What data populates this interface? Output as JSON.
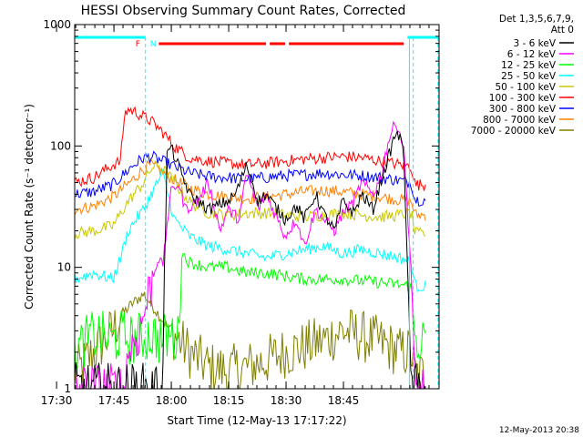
{
  "chart_data": {
    "type": "line",
    "title": "HESSI Observing Summary Count Rates, Corrected",
    "xlabel": "Start Time (12-May-13 17:17:22)",
    "ylabel": "Corrected Count Rate (s⁻¹ detector⁻¹)",
    "y_scale": "log",
    "ylim": [
      1,
      1000
    ],
    "xlim_minutes": [
      17.37,
      112.63
    ],
    "x_tick_labels": [
      "17:30",
      "17:45",
      "18:00",
      "18:15",
      "18:30",
      "18:45"
    ],
    "x_ticks_minutes": [
      12.63,
      27.63,
      42.63,
      57.63,
      72.63,
      87.63
    ],
    "y_tick_labels": [
      "1",
      "10",
      "100",
      "1000"
    ],
    "y_ticks": [
      1,
      10,
      100,
      1000
    ],
    "grid": false,
    "legend_placement": "outside-right",
    "legend_header": [
      "Det 1,3,5,6,7,9,",
      "Att 0"
    ],
    "series": [
      {
        "name": "3 - 6 keV",
        "color": "#000000",
        "t": [
          0,
          23,
          24,
          25,
          27,
          30,
          35,
          40,
          42,
          45,
          48,
          50,
          53,
          55,
          58,
          60,
          63,
          65,
          68,
          70,
          73,
          75,
          78,
          80,
          82,
          84,
          86,
          88,
          92
        ],
        "y": [
          1,
          1,
          80,
          100,
          70,
          40,
          30,
          35,
          40,
          70,
          35,
          40,
          30,
          25,
          32,
          25,
          40,
          28,
          20,
          35,
          28,
          40,
          30,
          50,
          80,
          130,
          100,
          1,
          1
        ]
      },
      {
        "name": "6 - 12 keV",
        "color": "#ff00ff",
        "t": [
          0,
          13,
          14,
          17,
          21,
          22,
          23,
          25,
          27,
          29,
          32,
          35,
          38,
          40,
          43,
          45,
          48,
          50,
          53,
          55,
          58,
          60,
          63,
          65,
          68,
          70,
          73,
          75,
          78,
          80,
          82,
          84,
          86,
          88,
          89,
          92
        ],
        "y": [
          1,
          1,
          2,
          3,
          10,
          12,
          10,
          40,
          50,
          30,
          35,
          50,
          20,
          30,
          25,
          60,
          30,
          40,
          25,
          18,
          25,
          15,
          30,
          25,
          20,
          28,
          35,
          50,
          40,
          55,
          110,
          160,
          100,
          9,
          1,
          1
        ]
      },
      {
        "name": "12 - 25 keV",
        "color": "#00ff00",
        "t": [
          0,
          5,
          10,
          12,
          15,
          20,
          23,
          25,
          27,
          28,
          30,
          35,
          40,
          45,
          50,
          60,
          70,
          80,
          88,
          89,
          92
        ],
        "y": [
          2,
          2.8,
          2.5,
          2.8,
          2.5,
          2.8,
          2.5,
          2.8,
          2.5,
          13,
          11,
          10,
          10,
          9,
          9,
          8,
          8,
          7.5,
          7,
          2.5,
          2.5
        ]
      },
      {
        "name": "25 - 50 keV",
        "color": "#00ffff",
        "t": [
          0,
          5,
          10,
          12,
          14,
          16,
          18,
          20,
          23,
          26,
          30,
          35,
          40,
          45,
          50,
          55,
          60,
          65,
          70,
          75,
          80,
          85,
          88,
          89,
          92
        ],
        "y": [
          8,
          9,
          8,
          12,
          20,
          25,
          30,
          40,
          60,
          25,
          18,
          15,
          14,
          13,
          12,
          13,
          14,
          15,
          13,
          14,
          13,
          12,
          11,
          7,
          7
        ]
      },
      {
        "name": "50 - 100 keV",
        "color": "#c8c800",
        "t": [
          0,
          5,
          10,
          14,
          18,
          20,
          22,
          25,
          30,
          35,
          40,
          45,
          50,
          55,
          60,
          65,
          70,
          75,
          80,
          85,
          88,
          89,
          92
        ],
        "y": [
          19,
          20,
          22,
          35,
          50,
          65,
          70,
          55,
          35,
          28,
          27,
          28,
          28,
          27,
          26,
          27,
          28,
          27,
          26,
          27,
          28,
          19,
          19
        ]
      },
      {
        "name": "100 - 300 keV",
        "color": "#ff0000",
        "t": [
          0,
          5,
          10,
          12,
          13,
          14,
          16,
          20,
          23,
          26,
          30,
          35,
          40,
          45,
          50,
          55,
          60,
          65,
          70,
          75,
          80,
          85,
          88,
          89,
          92
        ],
        "y": [
          50,
          55,
          70,
          75,
          180,
          200,
          190,
          160,
          130,
          100,
          80,
          75,
          72,
          70,
          72,
          75,
          78,
          80,
          82,
          80,
          75,
          70,
          68,
          48,
          48
        ]
      },
      {
        "name": "300 - 800 keV",
        "color": "#0000ff",
        "t": [
          0,
          5,
          10,
          15,
          18,
          20,
          25,
          30,
          35,
          40,
          45,
          50,
          55,
          60,
          65,
          70,
          75,
          80,
          85,
          88,
          89,
          92
        ],
        "y": [
          40,
          42,
          48,
          68,
          80,
          82,
          70,
          60,
          56,
          55,
          53,
          55,
          57,
          58,
          60,
          58,
          57,
          55,
          52,
          50,
          36,
          36
        ]
      },
      {
        "name": "800 - 7000 keV",
        "color": "#ff8000",
        "t": [
          0,
          5,
          10,
          15,
          18,
          20,
          25,
          30,
          35,
          40,
          45,
          50,
          55,
          60,
          65,
          70,
          75,
          80,
          85,
          88,
          89,
          92
        ],
        "y": [
          30,
          32,
          38,
          52,
          65,
          70,
          55,
          45,
          40,
          38,
          37,
          38,
          40,
          42,
          43,
          42,
          40,
          38,
          36,
          35,
          27,
          27
        ]
      },
      {
        "name": "7000 - 20000 keV",
        "color": "#7f7f00",
        "t": [
          0,
          5,
          10,
          12,
          15,
          18,
          20,
          25,
          30,
          35,
          40,
          45,
          50,
          55,
          60,
          65,
          70,
          75,
          80,
          85,
          88,
          89,
          92
        ],
        "y": [
          1.3,
          2,
          3,
          4,
          5,
          6,
          5,
          3,
          2,
          1.5,
          1.4,
          1.5,
          1.7,
          2,
          2.2,
          2.5,
          3,
          2.7,
          2.4,
          2,
          2,
          1.3,
          1.3
        ]
      }
    ],
    "annotations": [
      {
        "text": "F",
        "color": "#ff0000",
        "t": 16.5
      },
      {
        "text": "N",
        "color": "#00ffff",
        "t": 20.5
      }
    ],
    "intervals": [
      {
        "kind": "night",
        "color": "#00ffff",
        "t": [
          0,
          18.5
        ]
      },
      {
        "kind": "flare",
        "color": "#ff0000",
        "t": [
          22,
          50
        ]
      },
      {
        "kind": "flare",
        "color": "#ff0000",
        "t": [
          51,
          55
        ]
      },
      {
        "kind": "flare",
        "color": "#ff0000",
        "t": [
          56,
          86
        ]
      },
      {
        "kind": "night",
        "color": "#00ffff",
        "t": [
          87,
          95
        ]
      }
    ],
    "saa_boundaries_minutes": [
      18.5,
      88.5,
      95
    ]
  },
  "timestamp": "12-May-2013 20:38"
}
